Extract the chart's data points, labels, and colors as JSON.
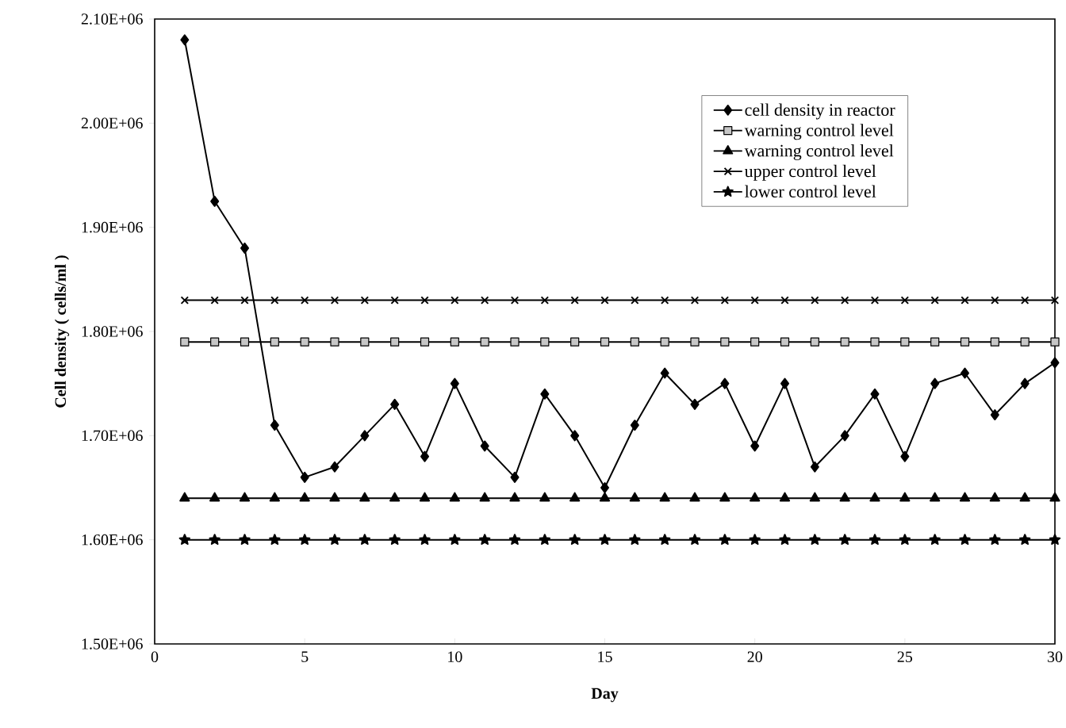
{
  "chart_data": {
    "type": "line",
    "xlabel": "Day",
    "ylabel": "Cell density ( cells/ml )",
    "x": [
      1,
      2,
      3,
      4,
      5,
      6,
      7,
      8,
      9,
      10,
      11,
      12,
      13,
      14,
      15,
      16,
      17,
      18,
      19,
      20,
      21,
      22,
      23,
      24,
      25,
      26,
      27,
      28,
      29,
      30
    ],
    "series": [
      {
        "name": "cell density in reactor",
        "color": "#000000",
        "marker": "diamond",
        "values": [
          2080000,
          1925000,
          1880000,
          1710000,
          1660000,
          1670000,
          1700000,
          1730000,
          1680000,
          1750000,
          1690000,
          1660000,
          1740000,
          1700000,
          1650000,
          1710000,
          1760000,
          1730000,
          1750000,
          1690000,
          1750000,
          1670000,
          1700000,
          1740000,
          1680000,
          1750000,
          1760000,
          1720000,
          1750000,
          1770000
        ]
      },
      {
        "name": "warning control level",
        "color": "#000000",
        "marker": "square",
        "values": [
          1790000,
          1790000,
          1790000,
          1790000,
          1790000,
          1790000,
          1790000,
          1790000,
          1790000,
          1790000,
          1790000,
          1790000,
          1790000,
          1790000,
          1790000,
          1790000,
          1790000,
          1790000,
          1790000,
          1790000,
          1790000,
          1790000,
          1790000,
          1790000,
          1790000,
          1790000,
          1790000,
          1790000,
          1790000,
          1790000
        ]
      },
      {
        "name": "warning control level",
        "color": "#000000",
        "marker": "triangle",
        "values": [
          1640000,
          1640000,
          1640000,
          1640000,
          1640000,
          1640000,
          1640000,
          1640000,
          1640000,
          1640000,
          1640000,
          1640000,
          1640000,
          1640000,
          1640000,
          1640000,
          1640000,
          1640000,
          1640000,
          1640000,
          1640000,
          1640000,
          1640000,
          1640000,
          1640000,
          1640000,
          1640000,
          1640000,
          1640000,
          1640000
        ]
      },
      {
        "name": "upper control level",
        "color": "#000000",
        "marker": "cross",
        "values": [
          1830000,
          1830000,
          1830000,
          1830000,
          1830000,
          1830000,
          1830000,
          1830000,
          1830000,
          1830000,
          1830000,
          1830000,
          1830000,
          1830000,
          1830000,
          1830000,
          1830000,
          1830000,
          1830000,
          1830000,
          1830000,
          1830000,
          1830000,
          1830000,
          1830000,
          1830000,
          1830000,
          1830000,
          1830000,
          1830000
        ]
      },
      {
        "name": "lower control level",
        "color": "#000000",
        "marker": "star",
        "values": [
          1600000,
          1600000,
          1600000,
          1600000,
          1600000,
          1600000,
          1600000,
          1600000,
          1600000,
          1600000,
          1600000,
          1600000,
          1600000,
          1600000,
          1600000,
          1600000,
          1600000,
          1600000,
          1600000,
          1600000,
          1600000,
          1600000,
          1600000,
          1600000,
          1600000,
          1600000,
          1600000,
          1600000,
          1600000,
          1600000
        ]
      }
    ],
    "xlim": [
      0,
      30
    ],
    "ylim": [
      1500000,
      2100000
    ],
    "xticks": [
      0,
      5,
      10,
      15,
      20,
      25,
      30
    ],
    "yticks": [
      {
        "value": 1500000,
        "label": "1.50E+06"
      },
      {
        "value": 1600000,
        "label": "1.60E+06"
      },
      {
        "value": 1700000,
        "label": "1.70E+06"
      },
      {
        "value": 1800000,
        "label": "1.80E+06"
      },
      {
        "value": 1900000,
        "label": "1.90E+06"
      },
      {
        "value": 2000000,
        "label": "2.00E+06"
      },
      {
        "value": 2100000,
        "label": "2.10E+06"
      }
    ],
    "legend": "top right",
    "grid": false,
    "line_style": "solid"
  }
}
